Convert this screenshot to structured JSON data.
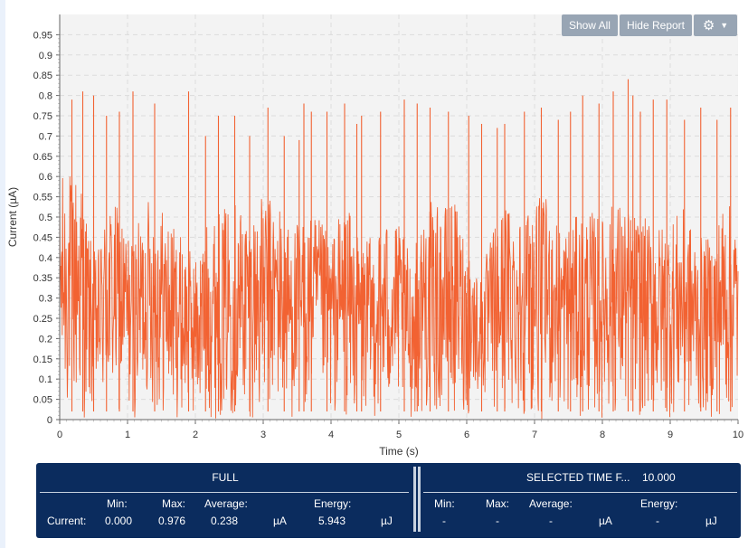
{
  "toolbar": {
    "show_all_label": "Show All",
    "hide_report_label": "Hide Report",
    "settings_icon": "gear-icon",
    "dropdown_icon": "caret-down-icon"
  },
  "chart_data": {
    "type": "line",
    "xlabel": "Time (s)",
    "ylabel": "Current (µA)",
    "xlim": [
      0,
      10
    ],
    "ylim": [
      0,
      1.0
    ],
    "x_ticks": [
      "0",
      "1",
      "2",
      "3",
      "4",
      "5",
      "6",
      "7",
      "8",
      "9",
      "10"
    ],
    "y_ticks": [
      "0",
      "0.05",
      "0.1",
      "0.15",
      "0.2",
      "0.25",
      "0.3",
      "0.35",
      "0.4",
      "0.45",
      "0.5",
      "0.55",
      "0.6",
      "0.65",
      "0.7",
      "0.75",
      "0.8",
      "0.85",
      "0.9",
      "0.95"
    ],
    "grid": true,
    "series": [
      {
        "color": "#f26232",
        "samples_per_second": 160,
        "envelope": [
          [
            0.0,
            0.6,
            0.0
          ],
          [
            0.15,
            0.62,
            0.0
          ],
          [
            0.3,
            0.62,
            0.0
          ],
          [
            0.45,
            0.45,
            0.0
          ],
          [
            0.55,
            0.4,
            0.02
          ],
          [
            0.7,
            0.55,
            0.0
          ],
          [
            0.9,
            0.52,
            0.0
          ],
          [
            1.05,
            0.45,
            0.0
          ],
          [
            1.15,
            0.48,
            0.0
          ],
          [
            1.3,
            0.55,
            0.05
          ],
          [
            1.45,
            0.55,
            0.0
          ],
          [
            1.6,
            0.5,
            0.0
          ],
          [
            1.8,
            0.45,
            0.0
          ],
          [
            2.0,
            0.4,
            0.0
          ],
          [
            2.2,
            0.5,
            0.0
          ],
          [
            2.4,
            0.52,
            0.0
          ],
          [
            2.6,
            0.55,
            0.0
          ],
          [
            2.8,
            0.52,
            0.0
          ],
          [
            3.0,
            0.55,
            0.0
          ],
          [
            3.2,
            0.55,
            0.0
          ],
          [
            3.4,
            0.48,
            0.0
          ],
          [
            3.6,
            0.5,
            0.0
          ],
          [
            3.8,
            0.5,
            0.05
          ],
          [
            4.0,
            0.45,
            0.0
          ],
          [
            4.2,
            0.55,
            0.0
          ],
          [
            4.4,
            0.45,
            0.0
          ],
          [
            4.6,
            0.45,
            0.0
          ],
          [
            4.8,
            0.5,
            0.0
          ],
          [
            5.0,
            0.48,
            0.02
          ],
          [
            5.2,
            0.4,
            0.0
          ],
          [
            5.4,
            0.55,
            0.0
          ],
          [
            5.6,
            0.52,
            0.0
          ],
          [
            5.8,
            0.55,
            0.0
          ],
          [
            6.0,
            0.45,
            0.0
          ],
          [
            6.2,
            0.35,
            0.05
          ],
          [
            6.4,
            0.48,
            0.0
          ],
          [
            6.6,
            0.55,
            0.0
          ],
          [
            6.8,
            0.52,
            0.0
          ],
          [
            7.0,
            0.55,
            0.0
          ],
          [
            7.2,
            0.55,
            0.0
          ],
          [
            7.4,
            0.48,
            0.0
          ],
          [
            7.6,
            0.5,
            0.0
          ],
          [
            7.8,
            0.52,
            0.0
          ],
          [
            8.0,
            0.5,
            0.0
          ],
          [
            8.2,
            0.55,
            0.0
          ],
          [
            8.4,
            0.52,
            0.0
          ],
          [
            8.6,
            0.5,
            0.0
          ],
          [
            8.8,
            0.48,
            0.0
          ],
          [
            9.0,
            0.5,
            0.0
          ],
          [
            9.2,
            0.52,
            0.0
          ],
          [
            9.4,
            0.45,
            0.0
          ],
          [
            9.6,
            0.45,
            0.0
          ],
          [
            9.8,
            0.55,
            0.0
          ],
          [
            10.0,
            0.5,
            0.0
          ]
        ],
        "spikes": [
          [
            0.18,
            0.79
          ],
          [
            0.34,
            0.81
          ],
          [
            0.5,
            0.8
          ],
          [
            0.69,
            0.75
          ],
          [
            0.88,
            0.76
          ],
          [
            1.08,
            0.81
          ],
          [
            1.4,
            0.78
          ],
          [
            1.9,
            0.81
          ],
          [
            2.15,
            0.7
          ],
          [
            2.34,
            0.75
          ],
          [
            2.58,
            0.75
          ],
          [
            2.8,
            0.7
          ],
          [
            3.07,
            0.77
          ],
          [
            3.31,
            0.7
          ],
          [
            3.53,
            0.69
          ],
          [
            3.71,
            0.76
          ],
          [
            3.94,
            0.76
          ],
          [
            4.2,
            0.78
          ],
          [
            4.45,
            0.75
          ],
          [
            4.73,
            0.76
          ],
          [
            5.08,
            0.79
          ],
          [
            5.27,
            0.78
          ],
          [
            5.46,
            0.77
          ],
          [
            5.73,
            0.76
          ],
          [
            6.03,
            0.75
          ],
          [
            6.22,
            0.73
          ],
          [
            6.56,
            0.73
          ],
          [
            6.85,
            0.76
          ],
          [
            7.1,
            0.77
          ],
          [
            7.35,
            0.74
          ],
          [
            7.71,
            0.8
          ],
          [
            7.95,
            0.78
          ],
          [
            8.16,
            0.81
          ],
          [
            8.38,
            0.84
          ],
          [
            8.56,
            0.76
          ],
          [
            8.75,
            0.79
          ],
          [
            8.95,
            0.79
          ],
          [
            9.21,
            0.74
          ],
          [
            9.45,
            0.77
          ],
          [
            9.69,
            0.74
          ],
          [
            9.89,
            0.77
          ],
          [
            3.6,
            0.78
          ],
          [
            4.38,
            0.73
          ],
          [
            6.45,
            0.72
          ],
          [
            7.53,
            0.76
          ],
          [
            8.45,
            0.8
          ]
        ]
      }
    ]
  },
  "report": {
    "full_title": "FULL",
    "selected_title": "SELECTED TIME F...",
    "selected_duration": "10.000",
    "row_label": "Current:",
    "headers": {
      "min": "Min:",
      "max": "Max:",
      "average": "Average:",
      "energy": "Energy:"
    },
    "full": {
      "min": "0.000",
      "max": "0.976",
      "average": "0.238",
      "avg_unit": "µA",
      "energy": "5.943",
      "energy_unit": "µJ"
    },
    "selected": {
      "min": "-",
      "max": "-",
      "average": "-",
      "avg_unit": "µA",
      "energy": "-",
      "energy_unit": "µJ"
    }
  }
}
